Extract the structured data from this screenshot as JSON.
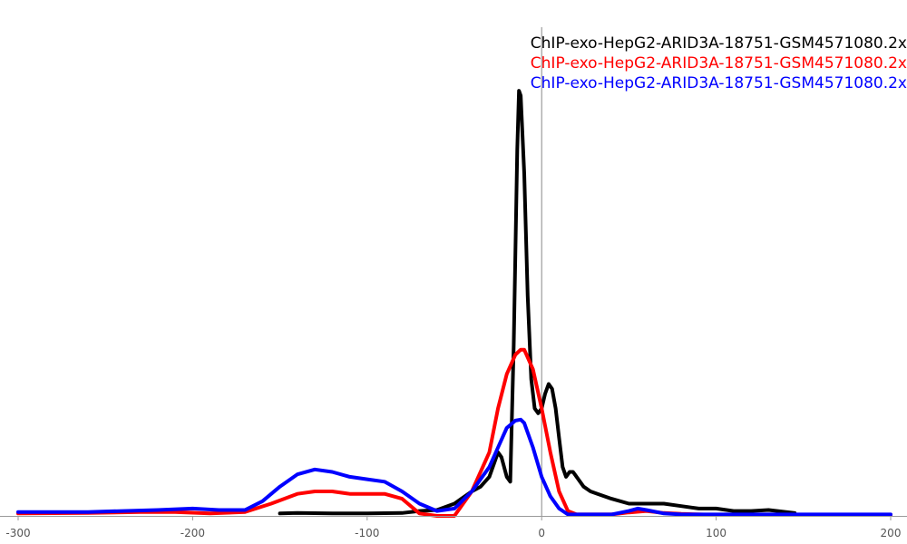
{
  "chart_data": {
    "type": "line",
    "title": "",
    "xlabel": "",
    "ylabel": "",
    "xlim": [
      -300,
      200
    ],
    "ylim": [
      0,
      1.0
    ],
    "x_ticks": [
      -300,
      -200,
      -100,
      0,
      100,
      200
    ],
    "x_tick_labels": [
      "-300",
      "-200",
      "-100",
      "0",
      "100",
      "200"
    ],
    "y_axis_visible": false,
    "grid": false,
    "legend_position": "top-right",
    "vertical_reference_line_x": 0,
    "series": [
      {
        "name": "ChIP-exo-HepG2-ARID3A-18751-GSM4571080.2x",
        "color": "#000000",
        "x": [
          -150,
          -140,
          -120,
          -100,
          -80,
          -70,
          -60,
          -50,
          -40,
          -35,
          -30,
          -25,
          -23,
          -20,
          -18,
          -16,
          -14,
          -13,
          -12,
          -10,
          -8,
          -6,
          -4,
          -2,
          0,
          2,
          4,
          6,
          8,
          10,
          12,
          14,
          16,
          18,
          20,
          24,
          28,
          32,
          40,
          50,
          60,
          70,
          80,
          90,
          100,
          110,
          120,
          130,
          140,
          145
        ],
        "y": [
          0.005,
          0.006,
          0.005,
          0.005,
          0.006,
          0.01,
          0.012,
          0.025,
          0.05,
          0.06,
          0.08,
          0.13,
          0.12,
          0.08,
          0.07,
          0.35,
          0.75,
          0.87,
          0.86,
          0.7,
          0.45,
          0.28,
          0.22,
          0.21,
          0.22,
          0.25,
          0.27,
          0.26,
          0.22,
          0.16,
          0.1,
          0.08,
          0.09,
          0.09,
          0.08,
          0.06,
          0.05,
          0.045,
          0.035,
          0.025,
          0.025,
          0.025,
          0.02,
          0.015,
          0.015,
          0.01,
          0.01,
          0.012,
          0.008,
          0.006
        ]
      },
      {
        "name": "ChIP-exo-HepG2-ARID3A-18751-GSM4571080.2x",
        "color": "#ff0000",
        "x": [
          -300,
          -260,
          -230,
          -210,
          -190,
          -170,
          -155,
          -140,
          -130,
          -120,
          -110,
          -100,
          -90,
          -80,
          -70,
          -60,
          -50,
          -40,
          -30,
          -25,
          -20,
          -15,
          -12,
          -10,
          -5,
          0,
          5,
          10,
          15,
          20,
          30,
          40,
          50,
          60,
          70,
          80,
          100,
          150,
          200
        ],
        "y": [
          0.005,
          0.006,
          0.008,
          0.008,
          0.005,
          0.008,
          0.025,
          0.045,
          0.05,
          0.05,
          0.045,
          0.045,
          0.045,
          0.035,
          0.005,
          0.0,
          0.0,
          0.05,
          0.13,
          0.22,
          0.29,
          0.33,
          0.34,
          0.34,
          0.3,
          0.22,
          0.13,
          0.05,
          0.01,
          0.003,
          0.003,
          0.003,
          0.007,
          0.01,
          0.006,
          0.004,
          0.002,
          0.002,
          0.002
        ]
      },
      {
        "name": "ChIP-exo-HepG2-ARID3A-18751-GSM4571080.2x",
        "color": "#0000ff",
        "x": [
          -300,
          -260,
          -240,
          -220,
          -200,
          -185,
          -170,
          -160,
          -150,
          -140,
          -130,
          -120,
          -110,
          -100,
          -90,
          -80,
          -70,
          -60,
          -50,
          -40,
          -30,
          -25,
          -20,
          -15,
          -12,
          -10,
          -5,
          0,
          5,
          10,
          15,
          20,
          25,
          30,
          40,
          50,
          55,
          60,
          70,
          80,
          100,
          150,
          200
        ],
        "y": [
          0.008,
          0.008,
          0.01,
          0.012,
          0.015,
          0.012,
          0.012,
          0.03,
          0.06,
          0.085,
          0.095,
          0.09,
          0.08,
          0.075,
          0.07,
          0.05,
          0.025,
          0.01,
          0.015,
          0.05,
          0.1,
          0.14,
          0.18,
          0.195,
          0.197,
          0.19,
          0.14,
          0.08,
          0.04,
          0.015,
          0.003,
          0.003,
          0.003,
          0.003,
          0.003,
          0.01,
          0.015,
          0.012,
          0.005,
          0.003,
          0.003,
          0.003,
          0.003
        ]
      }
    ]
  }
}
